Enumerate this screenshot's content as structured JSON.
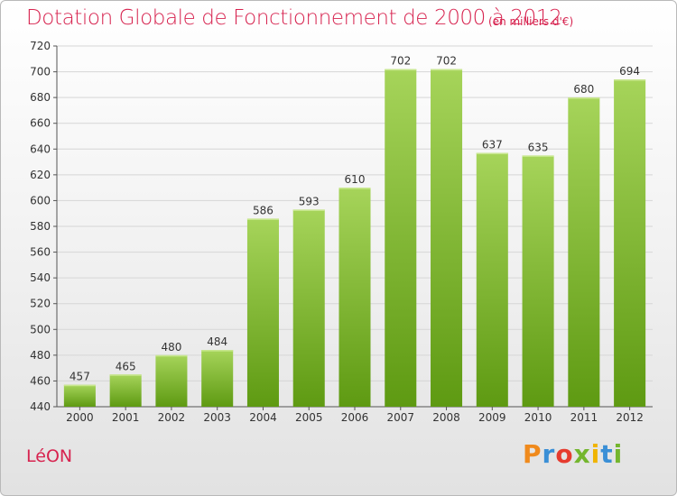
{
  "header": {
    "title": "Dotation Globale de Fonctionnement de 2000 à 2012",
    "subtitle": "(en milliers d'€)"
  },
  "footer": {
    "commune": "LéON",
    "brand": "Proxiti",
    "brand_colors": [
      "#f08a1c",
      "#3a8fd6",
      "#e63b2e",
      "#74b62e",
      "#f0b400",
      "#3a8fd6",
      "#74b62e"
    ]
  },
  "colors": {
    "bar_top": "#a6d45a",
    "bar_bottom": "#5e9a12",
    "title": "#d7234f"
  },
  "chart_data": {
    "type": "bar",
    "title": "Dotation Globale de Fonctionnement de 2000 à 2012",
    "xlabel": "",
    "ylabel": "",
    "categories": [
      "2000",
      "2001",
      "2002",
      "2003",
      "2004",
      "2005",
      "2006",
      "2007",
      "2008",
      "2009",
      "2010",
      "2011",
      "2012"
    ],
    "values": [
      457,
      465,
      480,
      484,
      586,
      593,
      610,
      702,
      702,
      637,
      635,
      680,
      694
    ],
    "ylim": [
      440,
      720
    ],
    "yticks": [
      440,
      460,
      480,
      500,
      520,
      540,
      560,
      580,
      600,
      620,
      640,
      660,
      680,
      700,
      720
    ],
    "grid": true,
    "legend": "none"
  }
}
